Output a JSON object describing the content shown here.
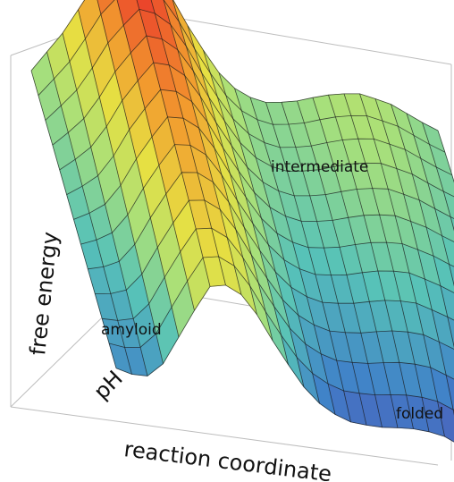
{
  "chart_data": {
    "type": "surface",
    "title": "",
    "xlabel": "reaction coordinate",
    "ylabel": "pH",
    "zlabel": "free energy",
    "grid": false,
    "annotations": [
      {
        "text": "amyloid"
      },
      {
        "text": "intermediate"
      },
      {
        "text": "folded"
      }
    ],
    "colormap": [
      "#5b3fa8",
      "#3f7fc9",
      "#57c2b8",
      "#a8e07a",
      "#e6e043",
      "#f29a2e",
      "#e8272a"
    ],
    "surface_profile": {
      "x": [
        0.0,
        0.08,
        0.16,
        0.24,
        0.32,
        0.4,
        0.48,
        0.56,
        0.64,
        0.72,
        0.8,
        0.88,
        0.96,
        1.0
      ],
      "z": [
        0.4,
        0.6,
        0.85,
        1.0,
        0.9,
        0.65,
        0.45,
        0.38,
        0.4,
        0.45,
        0.48,
        0.45,
        0.38,
        0.35
      ]
    }
  }
}
